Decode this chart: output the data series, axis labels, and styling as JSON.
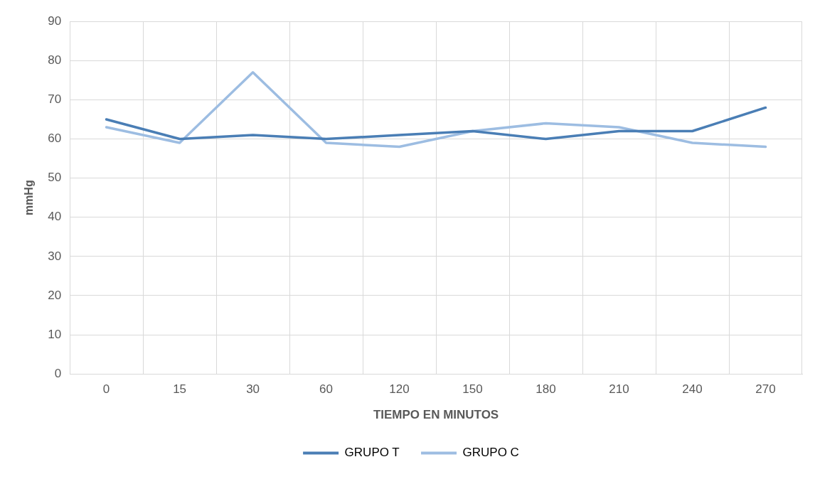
{
  "chart_data": {
    "type": "line",
    "xlabel": "TIEMPO EN MINUTOS",
    "ylabel": "mmHg",
    "categories": [
      "0",
      "15",
      "30",
      "60",
      "120",
      "150",
      "180",
      "210",
      "240",
      "270"
    ],
    "series": [
      {
        "name": "GRUPO T",
        "color": "#4a7eb5",
        "values": [
          65,
          60,
          61,
          60,
          61,
          62,
          60,
          62,
          62,
          68
        ]
      },
      {
        "name": "GRUPO C",
        "color": "#9dbde2",
        "values": [
          63,
          59,
          77,
          59,
          58,
          62,
          64,
          63,
          59,
          58
        ]
      }
    ],
    "ylim": [
      0,
      90
    ],
    "yticks": [
      0,
      10,
      20,
      30,
      40,
      50,
      60,
      70,
      80,
      90
    ],
    "grid": true,
    "legend": "bottom",
    "marker": "none",
    "line_style": "solid"
  }
}
